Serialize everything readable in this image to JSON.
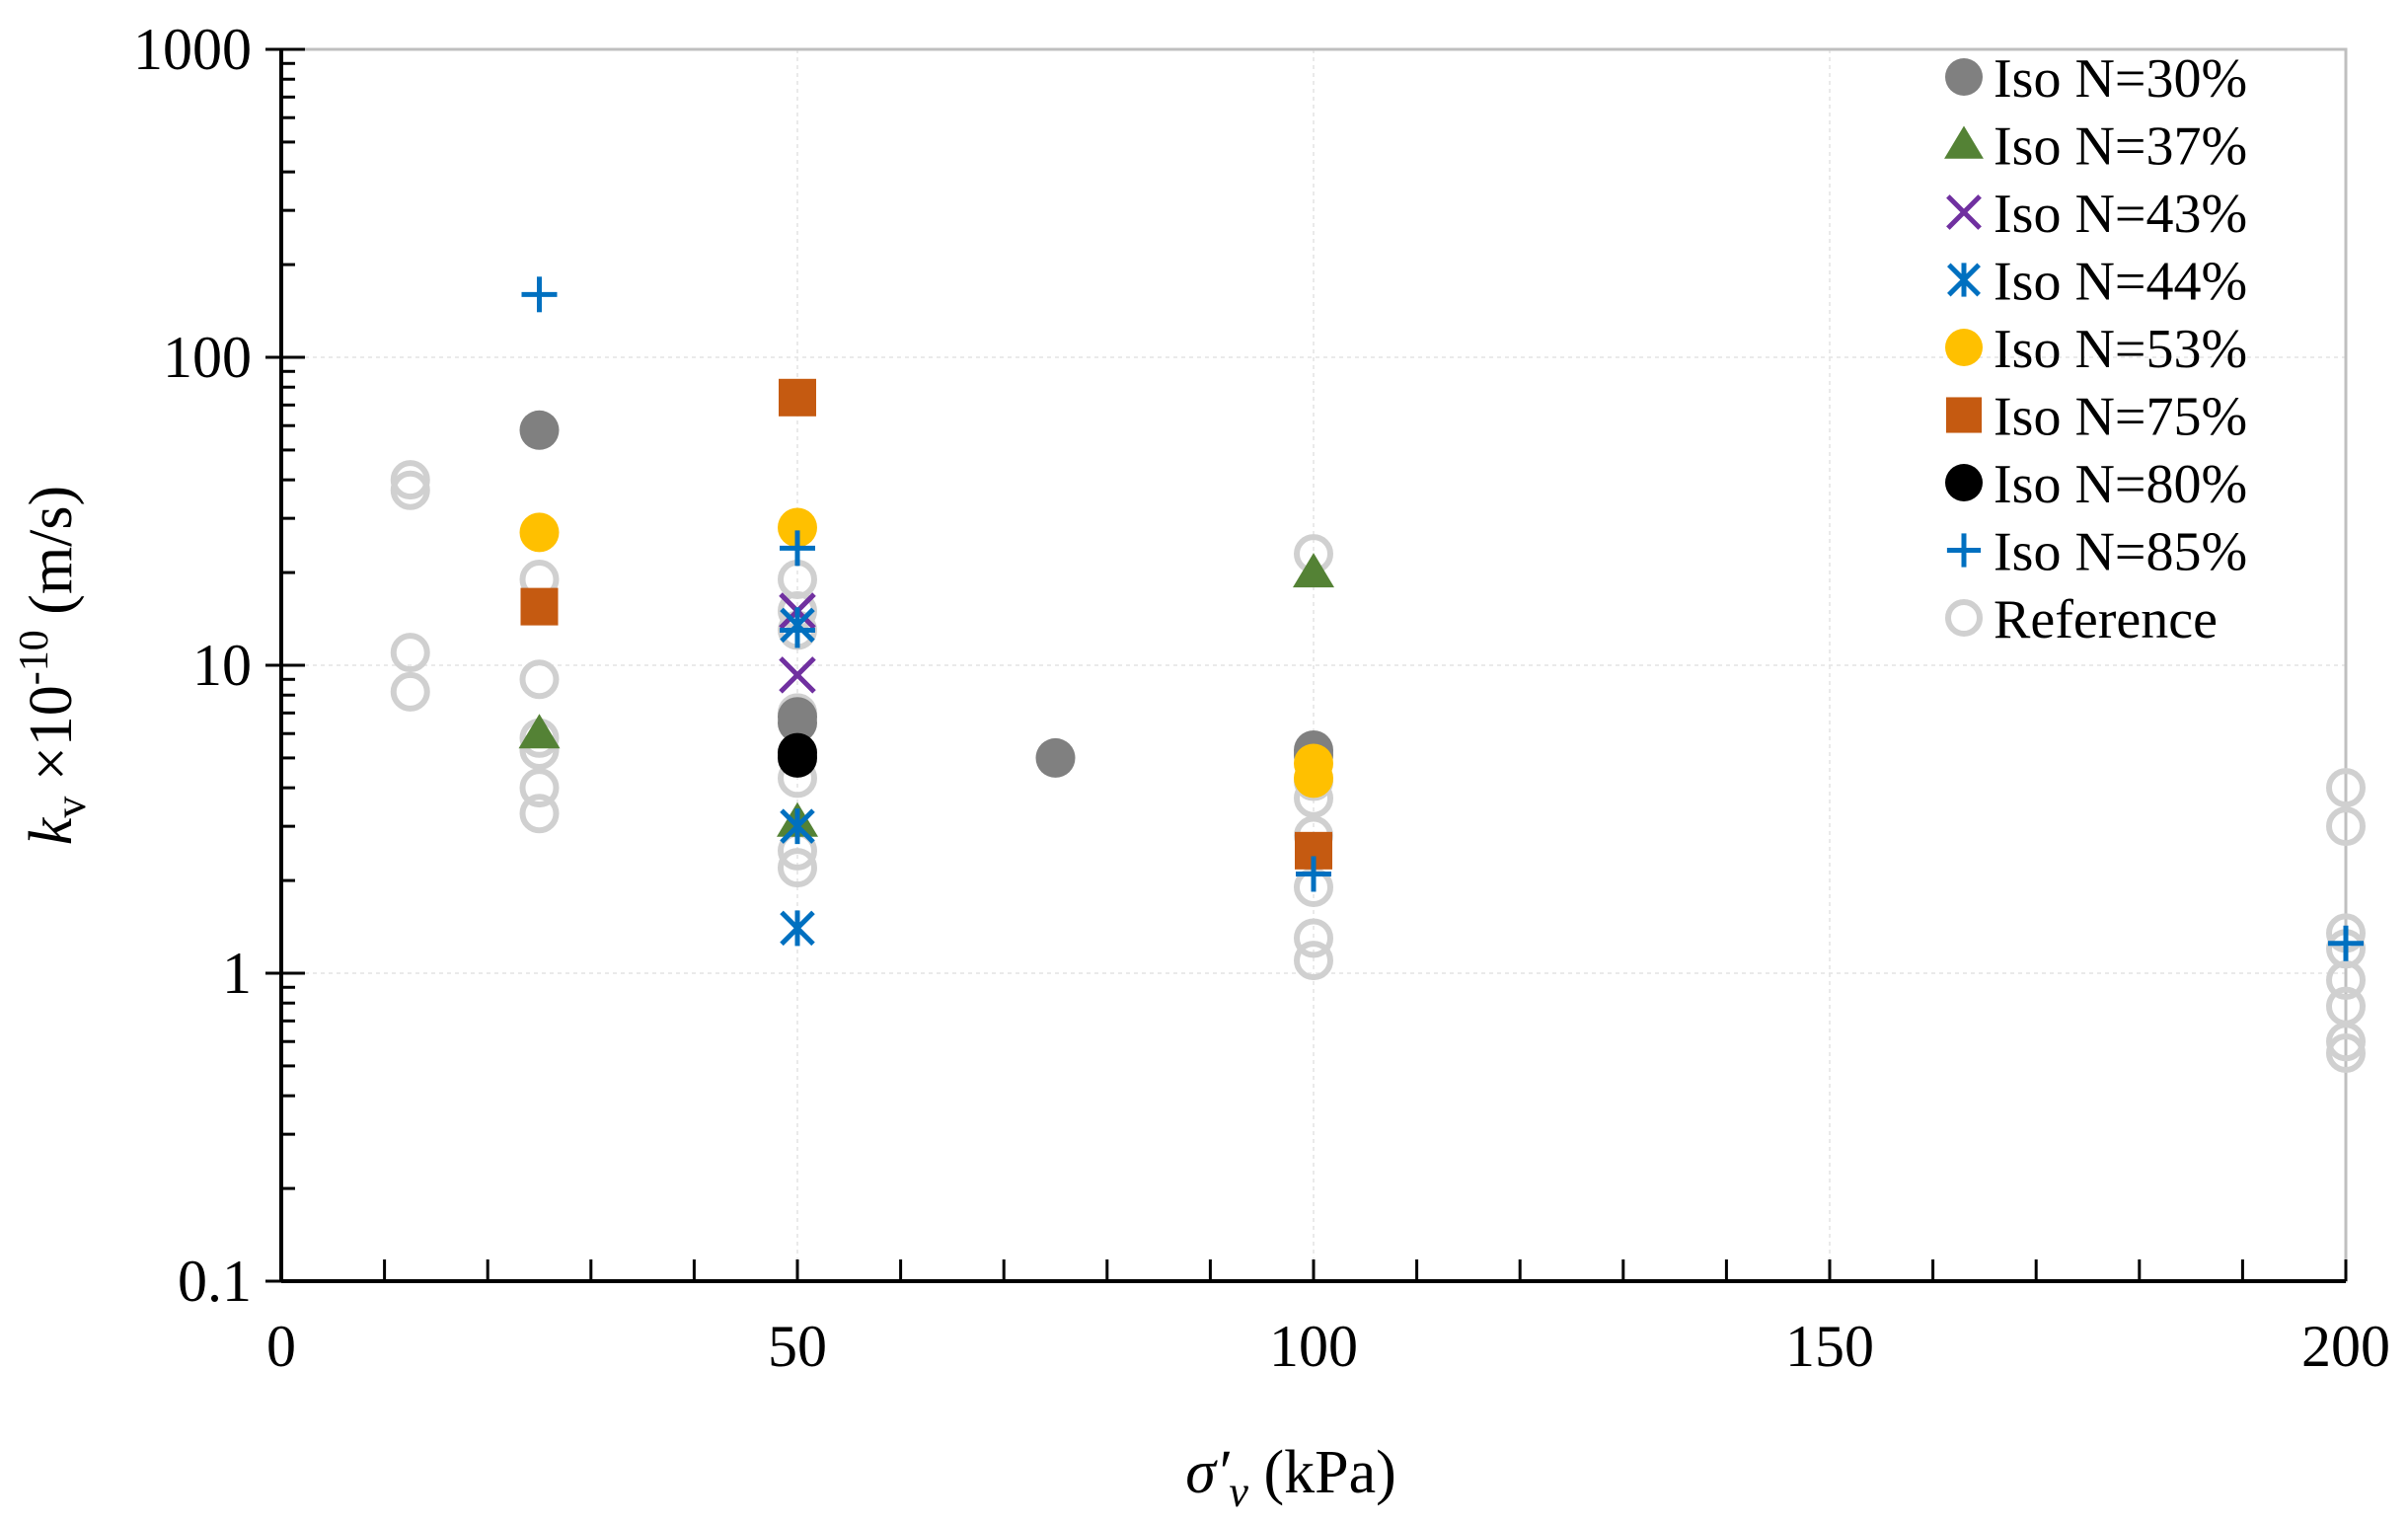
{
  "chart_data": {
    "type": "scatter",
    "title": "",
    "xlabel": {
      "symbol": "σ′",
      "sub": "v",
      "unit": "(kPa)"
    },
    "ylabel": {
      "symbol": "k",
      "sub": "v",
      "factor": "×10",
      "exp": "-10",
      "unit": "(m/s)"
    },
    "xlim": [
      0,
      200
    ],
    "ylim": [
      0.1,
      1000
    ],
    "yscale": "log",
    "x_ticks": [
      "0",
      "50",
      "100",
      "150",
      "200"
    ],
    "x_tick_values": [
      0,
      50,
      100,
      150,
      200
    ],
    "y_ticks": [
      "0.1",
      "1",
      "10",
      "100",
      "1000"
    ],
    "y_tick_values": [
      0.1,
      1,
      10,
      100,
      1000
    ],
    "grid": true,
    "legend_position": "top-right",
    "series": [
      {
        "name": "Iso N=30%",
        "marker": "circle",
        "color": "#808080",
        "points": [
          [
            25,
            58
          ],
          [
            50,
            6.8
          ],
          [
            50,
            6.5
          ],
          [
            75,
            5.0
          ],
          [
            100,
            5.3
          ],
          [
            100,
            5.1
          ]
        ]
      },
      {
        "name": "Iso N=37%",
        "marker": "triangle",
        "color": "#548235",
        "points": [
          [
            25,
            6.0
          ],
          [
            50,
            3.1
          ],
          [
            100,
            20.0
          ]
        ]
      },
      {
        "name": "Iso N=43%",
        "marker": "x",
        "color": "#7030a0",
        "points": [
          [
            50,
            9.3
          ],
          [
            50,
            15.0
          ]
        ]
      },
      {
        "name": "Iso N=44%",
        "marker": "asterisk",
        "color": "#0070c0",
        "points": [
          [
            50,
            1.4
          ],
          [
            50,
            3.0
          ],
          [
            50,
            13.5
          ]
        ]
      },
      {
        "name": "Iso N=53%",
        "marker": "circle",
        "color": "#ffc000",
        "points": [
          [
            25,
            27
          ],
          [
            50,
            28
          ],
          [
            100,
            4.8
          ],
          [
            100,
            4.3
          ]
        ]
      },
      {
        "name": "Iso N=75%",
        "marker": "square",
        "color": "#c55a11",
        "points": [
          [
            25,
            15.5
          ],
          [
            50,
            74
          ],
          [
            100,
            2.5
          ]
        ]
      },
      {
        "name": "Iso N=80%",
        "marker": "circle",
        "color": "#000000",
        "points": [
          [
            50,
            5.0
          ],
          [
            50,
            5.2
          ]
        ]
      },
      {
        "name": "Iso N=85%",
        "marker": "plus",
        "color": "#0070c0",
        "points": [
          [
            25,
            160
          ],
          [
            50,
            24
          ],
          [
            50,
            13
          ],
          [
            100,
            2.1
          ],
          [
            200,
            1.25
          ]
        ]
      },
      {
        "name": "Reference",
        "marker": "open-circle",
        "color": "#d0d0d0",
        "points": [
          [
            12.5,
            40
          ],
          [
            12.5,
            37
          ],
          [
            12.5,
            11
          ],
          [
            12.5,
            8.2
          ],
          [
            25,
            19
          ],
          [
            25,
            9
          ],
          [
            25,
            5.8
          ],
          [
            25,
            5.3
          ],
          [
            25,
            4.0
          ],
          [
            25,
            3.3
          ],
          [
            50,
            19
          ],
          [
            50,
            15
          ],
          [
            50,
            13
          ],
          [
            50,
            7.0
          ],
          [
            50,
            4.3
          ],
          [
            50,
            2.5
          ],
          [
            50,
            2.2
          ],
          [
            100,
            23
          ],
          [
            100,
            4.2
          ],
          [
            100,
            3.7
          ],
          [
            100,
            2.8
          ],
          [
            100,
            1.9
          ],
          [
            100,
            1.3
          ],
          [
            100,
            1.1
          ],
          [
            200,
            4.0
          ],
          [
            200,
            3.0
          ],
          [
            200,
            1.35
          ],
          [
            200,
            1.2
          ],
          [
            200,
            0.95
          ],
          [
            200,
            0.78
          ],
          [
            200,
            0.6
          ],
          [
            200,
            0.55
          ]
        ]
      }
    ]
  }
}
